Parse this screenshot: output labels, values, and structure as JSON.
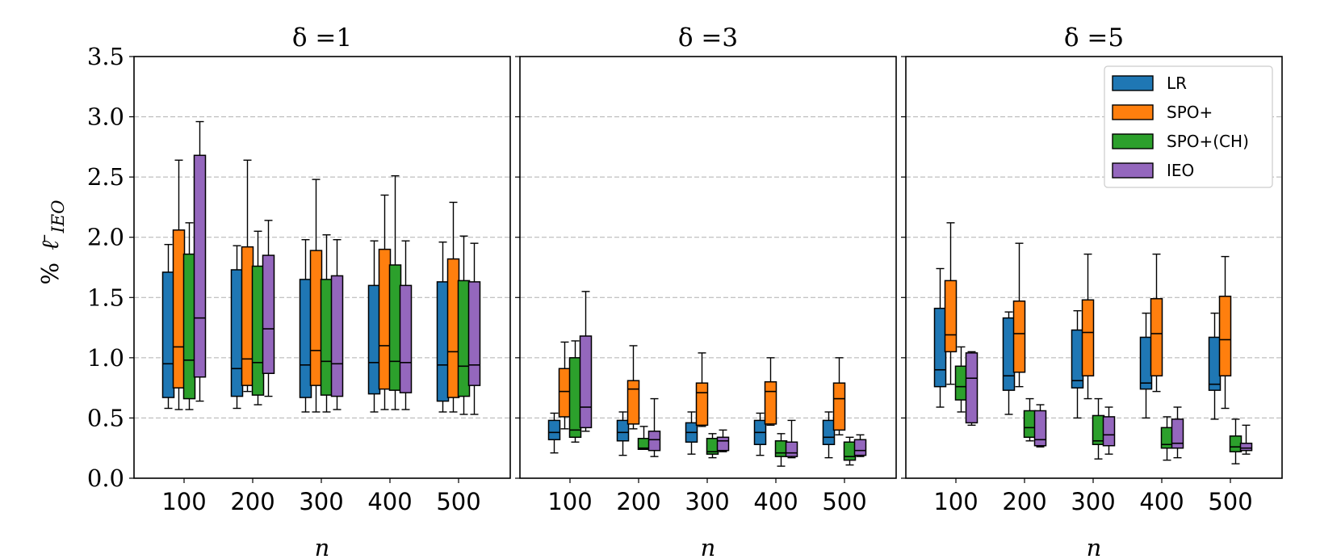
{
  "chart_data": {
    "type": "boxplot",
    "ylabel": "% ℓ̄_IEO",
    "ylabel_prefix": "%",
    "ylabel_symbol": "ℓ̄",
    "ylabel_subscript": "IEO",
    "xlabel": "n",
    "ylim": [
      0,
      3.5
    ],
    "yticks": [
      0.0,
      0.5,
      1.0,
      1.5,
      2.0,
      2.5,
      3.0,
      3.5
    ],
    "ytick_labels": [
      "0.0",
      "0.5",
      "1.0",
      "1.5",
      "2.0",
      "2.5",
      "3.0",
      "3.5"
    ],
    "grid": "y-dashed",
    "categories": [
      "100",
      "200",
      "300",
      "400",
      "500"
    ],
    "legend": {
      "position": "upper-right",
      "entries": [
        {
          "label": "LR",
          "color": "#1f77b4"
        },
        {
          "label": "SPO+",
          "color": "#ff7f0e"
        },
        {
          "label": "SPO+(CH)",
          "color": "#2ca02c"
        },
        {
          "label": "IEO",
          "color": "#9467bd"
        }
      ]
    },
    "panels": [
      {
        "title": "δ =1",
        "series": [
          {
            "name": "LR",
            "color": "#1f77b4",
            "boxes": [
              {
                "min": 0.58,
                "q1": 0.67,
                "median": 0.95,
                "q3": 1.71,
                "max": 1.94
              },
              {
                "min": 0.58,
                "q1": 0.68,
                "median": 0.91,
                "q3": 1.73,
                "max": 1.93
              },
              {
                "min": 0.55,
                "q1": 0.67,
                "median": 0.94,
                "q3": 1.65,
                "max": 1.98
              },
              {
                "min": 0.55,
                "q1": 0.7,
                "median": 0.96,
                "q3": 1.6,
                "max": 1.97
              },
              {
                "min": 0.55,
                "q1": 0.64,
                "median": 0.94,
                "q3": 1.63,
                "max": 1.96
              }
            ]
          },
          {
            "name": "SPO+",
            "color": "#ff7f0e",
            "boxes": [
              {
                "min": 0.57,
                "q1": 0.75,
                "median": 1.09,
                "q3": 2.06,
                "max": 2.64
              },
              {
                "min": 0.72,
                "q1": 0.77,
                "median": 0.99,
                "q3": 1.92,
                "max": 2.64
              },
              {
                "min": 0.55,
                "q1": 0.77,
                "median": 1.06,
                "q3": 1.89,
                "max": 2.48
              },
              {
                "min": 0.57,
                "q1": 0.74,
                "median": 1.1,
                "q3": 1.9,
                "max": 2.35
              },
              {
                "min": 0.55,
                "q1": 0.67,
                "median": 1.05,
                "q3": 1.82,
                "max": 2.29
              }
            ]
          },
          {
            "name": "SPO+(CH)",
            "color": "#2ca02c",
            "boxes": [
              {
                "min": 0.57,
                "q1": 0.66,
                "median": 0.98,
                "q3": 1.86,
                "max": 2.12
              },
              {
                "min": 0.61,
                "q1": 0.69,
                "median": 0.96,
                "q3": 1.76,
                "max": 2.05
              },
              {
                "min": 0.55,
                "q1": 0.69,
                "median": 0.97,
                "q3": 1.65,
                "max": 2.02
              },
              {
                "min": 0.57,
                "q1": 0.73,
                "median": 0.97,
                "q3": 1.77,
                "max": 2.51
              },
              {
                "min": 0.53,
                "q1": 0.68,
                "median": 0.93,
                "q3": 1.64,
                "max": 2.01
              }
            ]
          },
          {
            "name": "IEO",
            "color": "#9467bd",
            "boxes": [
              {
                "min": 0.64,
                "q1": 0.84,
                "median": 1.33,
                "q3": 2.68,
                "max": 2.96
              },
              {
                "min": 0.68,
                "q1": 0.87,
                "median": 1.24,
                "q3": 1.85,
                "max": 2.14
              },
              {
                "min": 0.57,
                "q1": 0.68,
                "median": 0.95,
                "q3": 1.68,
                "max": 1.98
              },
              {
                "min": 0.57,
                "q1": 0.71,
                "median": 0.96,
                "q3": 1.6,
                "max": 1.97
              },
              {
                "min": 0.53,
                "q1": 0.77,
                "median": 0.94,
                "q3": 1.63,
                "max": 1.95
              }
            ]
          }
        ]
      },
      {
        "title": "δ =3",
        "series": [
          {
            "name": "LR",
            "color": "#1f77b4",
            "boxes": [
              {
                "min": 0.21,
                "q1": 0.32,
                "median": 0.38,
                "q3": 0.48,
                "max": 0.54
              },
              {
                "min": 0.19,
                "q1": 0.31,
                "median": 0.38,
                "q3": 0.48,
                "max": 0.55
              },
              {
                "min": 0.2,
                "q1": 0.3,
                "median": 0.38,
                "q3": 0.46,
                "max": 0.55
              },
              {
                "min": 0.19,
                "q1": 0.28,
                "median": 0.38,
                "q3": 0.48,
                "max": 0.54
              },
              {
                "min": 0.17,
                "q1": 0.28,
                "median": 0.34,
                "q3": 0.48,
                "max": 0.55
              }
            ]
          },
          {
            "name": "SPO+",
            "color": "#ff7f0e",
            "boxes": [
              {
                "min": 0.41,
                "q1": 0.51,
                "median": 0.72,
                "q3": 0.91,
                "max": 1.13
              },
              {
                "min": 0.41,
                "q1": 0.45,
                "median": 0.74,
                "q3": 0.81,
                "max": 1.1
              },
              {
                "min": 0.43,
                "q1": 0.44,
                "median": 0.71,
                "q3": 0.79,
                "max": 1.04
              },
              {
                "min": 0.44,
                "q1": 0.45,
                "median": 0.72,
                "q3": 0.8,
                "max": 1.0
              },
              {
                "min": 0.36,
                "q1": 0.4,
                "median": 0.66,
                "q3": 0.79,
                "max": 1.0
              }
            ]
          },
          {
            "name": "SPO+(CH)",
            "color": "#2ca02c",
            "boxes": [
              {
                "min": 0.3,
                "q1": 0.34,
                "median": 0.4,
                "q3": 1.0,
                "max": 1.14
              },
              {
                "min": 0.24,
                "q1": 0.24,
                "median": 0.25,
                "q3": 0.33,
                "max": 0.43
              },
              {
                "min": 0.17,
                "q1": 0.2,
                "median": 0.22,
                "q3": 0.33,
                "max": 0.37
              },
              {
                "min": 0.1,
                "q1": 0.18,
                "median": 0.21,
                "q3": 0.31,
                "max": 0.37
              },
              {
                "min": 0.11,
                "q1": 0.15,
                "median": 0.18,
                "q3": 0.3,
                "max": 0.34
              }
            ]
          },
          {
            "name": "IEO",
            "color": "#9467bd",
            "boxes": [
              {
                "min": 0.39,
                "q1": 0.42,
                "median": 0.59,
                "q3": 1.18,
                "max": 1.55
              },
              {
                "min": 0.18,
                "q1": 0.23,
                "median": 0.32,
                "q3": 0.39,
                "max": 0.66
              },
              {
                "min": 0.22,
                "q1": 0.23,
                "median": 0.31,
                "q3": 0.34,
                "max": 0.4
              },
              {
                "min": 0.17,
                "q1": 0.18,
                "median": 0.21,
                "q3": 0.3,
                "max": 0.48
              },
              {
                "min": 0.18,
                "q1": 0.19,
                "median": 0.23,
                "q3": 0.32,
                "max": 0.36
              }
            ]
          }
        ]
      },
      {
        "title": "δ =5",
        "series": [
          {
            "name": "LR",
            "color": "#1f77b4",
            "boxes": [
              {
                "min": 0.59,
                "q1": 0.76,
                "median": 0.9,
                "q3": 1.41,
                "max": 1.74
              },
              {
                "min": 0.53,
                "q1": 0.73,
                "median": 0.85,
                "q3": 1.33,
                "max": 1.38
              },
              {
                "min": 0.5,
                "q1": 0.75,
                "median": 0.81,
                "q3": 1.23,
                "max": 1.39
              },
              {
                "min": 0.5,
                "q1": 0.74,
                "median": 0.79,
                "q3": 1.17,
                "max": 1.37
              },
              {
                "min": 0.49,
                "q1": 0.73,
                "median": 0.78,
                "q3": 1.17,
                "max": 1.37
              }
            ]
          },
          {
            "name": "SPO+",
            "color": "#ff7f0e",
            "boxes": [
              {
                "min": 0.78,
                "q1": 1.05,
                "median": 1.19,
                "q3": 1.64,
                "max": 2.12
              },
              {
                "min": 0.76,
                "q1": 0.88,
                "median": 1.2,
                "q3": 1.47,
                "max": 1.95
              },
              {
                "min": 0.66,
                "q1": 0.85,
                "median": 1.21,
                "q3": 1.48,
                "max": 1.86
              },
              {
                "min": 0.72,
                "q1": 0.85,
                "median": 1.2,
                "q3": 1.49,
                "max": 1.86
              },
              {
                "min": 0.58,
                "q1": 0.85,
                "median": 1.15,
                "q3": 1.51,
                "max": 1.84
              }
            ]
          },
          {
            "name": "SPO+(CH)",
            "color": "#2ca02c",
            "boxes": [
              {
                "min": 0.55,
                "q1": 0.65,
                "median": 0.76,
                "q3": 0.93,
                "max": 1.09
              },
              {
                "min": 0.31,
                "q1": 0.34,
                "median": 0.42,
                "q3": 0.56,
                "max": 0.66
              },
              {
                "min": 0.16,
                "q1": 0.28,
                "median": 0.31,
                "q3": 0.52,
                "max": 0.66
              },
              {
                "min": 0.15,
                "q1": 0.25,
                "median": 0.28,
                "q3": 0.42,
                "max": 0.51
              },
              {
                "min": 0.12,
                "q1": 0.22,
                "median": 0.26,
                "q3": 0.35,
                "max": 0.49
              }
            ]
          },
          {
            "name": "IEO",
            "color": "#9467bd",
            "boxes": [
              {
                "min": 0.44,
                "q1": 0.46,
                "median": 0.83,
                "q3": 1.04,
                "max": 1.05
              },
              {
                "min": 0.26,
                "q1": 0.27,
                "median": 0.32,
                "q3": 0.56,
                "max": 0.61
              },
              {
                "min": 0.2,
                "q1": 0.27,
                "median": 0.36,
                "q3": 0.51,
                "max": 0.59
              },
              {
                "min": 0.17,
                "q1": 0.25,
                "median": 0.29,
                "q3": 0.49,
                "max": 0.59
              },
              {
                "min": 0.2,
                "q1": 0.23,
                "median": 0.25,
                "q3": 0.29,
                "max": 0.44
              }
            ]
          }
        ]
      }
    ]
  }
}
